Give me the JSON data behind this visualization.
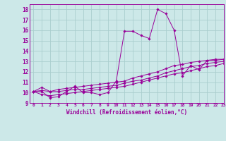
{
  "xlabel": "Windchill (Refroidissement éolien,°C)",
  "background_color": "#cce8e8",
  "grid_color": "#aacece",
  "line_color": "#990099",
  "xlim": [
    -0.5,
    23
  ],
  "ylim": [
    9,
    18.5
  ],
  "xticks": [
    0,
    1,
    2,
    3,
    4,
    5,
    6,
    7,
    8,
    9,
    10,
    11,
    12,
    13,
    14,
    15,
    16,
    17,
    18,
    19,
    20,
    21,
    22,
    23
  ],
  "yticks": [
    9,
    10,
    11,
    12,
    13,
    14,
    15,
    16,
    17,
    18
  ],
  "series": [
    [
      10.1,
      10.1,
      9.5,
      9.6,
      10.1,
      10.6,
      10.0,
      10.0,
      9.8,
      10.0,
      11.1,
      15.9,
      15.9,
      15.5,
      15.2,
      18.0,
      17.6,
      16.0,
      11.6,
      12.6,
      12.2,
      13.1,
      13.1,
      13.2
    ],
    [
      10.1,
      10.5,
      10.1,
      10.3,
      10.4,
      10.5,
      10.6,
      10.7,
      10.8,
      10.9,
      11.0,
      11.1,
      11.4,
      11.6,
      11.8,
      12.0,
      12.3,
      12.6,
      12.7,
      12.9,
      13.0,
      13.1,
      13.2,
      13.2
    ],
    [
      10.1,
      9.8,
      9.7,
      9.8,
      9.9,
      10.0,
      10.1,
      10.2,
      10.3,
      10.4,
      10.5,
      10.6,
      10.8,
      11.0,
      11.2,
      11.4,
      11.6,
      11.8,
      11.9,
      12.1,
      12.3,
      12.5,
      12.6,
      12.8
    ],
    [
      10.1,
      10.2,
      10.1,
      10.1,
      10.2,
      10.3,
      10.3,
      10.4,
      10.5,
      10.6,
      10.7,
      10.9,
      11.1,
      11.2,
      11.4,
      11.6,
      11.9,
      12.1,
      12.3,
      12.5,
      12.6,
      12.8,
      12.9,
      13.0
    ]
  ]
}
